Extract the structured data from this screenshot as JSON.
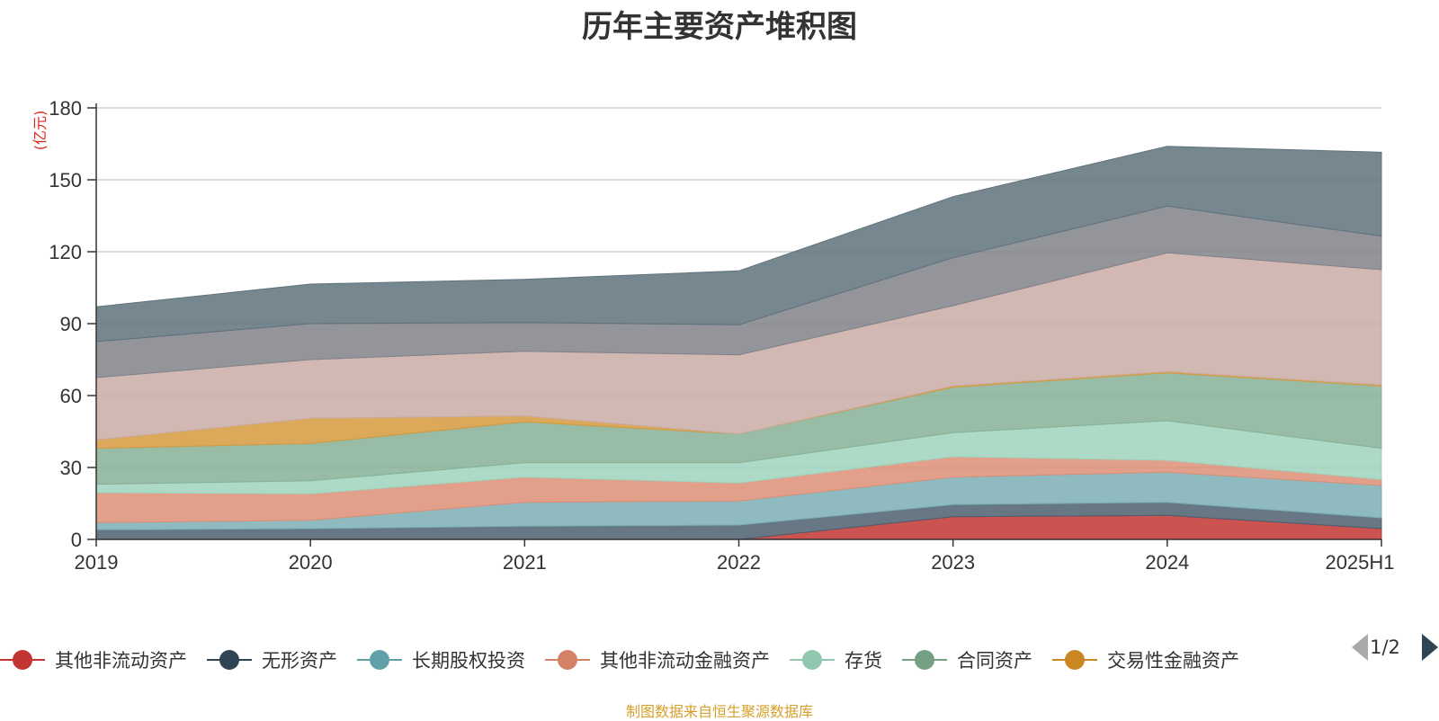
{
  "title": "历年主要资产堆积图",
  "footer": "制图数据来自恒生聚源数据库",
  "legend": {
    "page": "1/2"
  },
  "chart_data": {
    "type": "area",
    "stacked": true,
    "title": "历年主要资产堆积图",
    "ylabel": "(亿元)",
    "ylim": [
      0,
      180
    ],
    "yticks": [
      0,
      30,
      60,
      90,
      120,
      150,
      180
    ],
    "grid": true,
    "legend_position": "bottom",
    "categories": [
      "2019",
      "2020",
      "2021",
      "2022",
      "2023",
      "2024",
      "2025H1"
    ],
    "series": [
      {
        "name": "其他非流动资产",
        "color": "#c23531",
        "legend_color": "#c23531",
        "values": [
          0,
          0,
          0,
          0,
          9.5,
          10,
          4.5
        ]
      },
      {
        "name": "无形资产",
        "color": "#4e5f6f",
        "legend_color": "#2f4554",
        "values": [
          4,
          4.5,
          5.5,
          6,
          5,
          5.5,
          4.5
        ]
      },
      {
        "name": "长期股权投资",
        "color": "#7aaeb5",
        "legend_color": "#61a0a8",
        "values": [
          3,
          3.5,
          10,
          10,
          11.5,
          12.5,
          13.5
        ]
      },
      {
        "name": "其他非流动金融资产",
        "color": "#dd8f77",
        "legend_color": "#d48265",
        "values": [
          12.5,
          11,
          10.5,
          7.5,
          8.5,
          5,
          2.5
        ]
      },
      {
        "name": "存货",
        "color": "#9fd3bd",
        "legend_color": "#91c7ae",
        "values": [
          3.5,
          5.5,
          6,
          8.5,
          10,
          16.5,
          13
        ]
      },
      {
        "name": "合同资产",
        "color": "#86b097",
        "legend_color": "#749f83",
        "values": [
          15,
          15.5,
          17,
          12,
          19,
          20,
          26
        ]
      },
      {
        "name": "交易性金融资产",
        "color": "#d69a3d",
        "legend_color": "#ca8622",
        "values": [
          3.5,
          10.5,
          2.5,
          0,
          0.5,
          0.5,
          0.5
        ]
      },
      {
        "name": "",
        "color": "#c9aca4",
        "values": [
          26,
          24.5,
          27,
          33,
          33.5,
          49.5,
          48
        ]
      },
      {
        "name": "",
        "color": "#81828a",
        "values": [
          15,
          15,
          12,
          12.5,
          20,
          19.5,
          14
        ]
      },
      {
        "name": "",
        "color": "#5f727c",
        "values": [
          14.5,
          16.5,
          18,
          22.5,
          25.5,
          25,
          35
        ]
      }
    ]
  }
}
